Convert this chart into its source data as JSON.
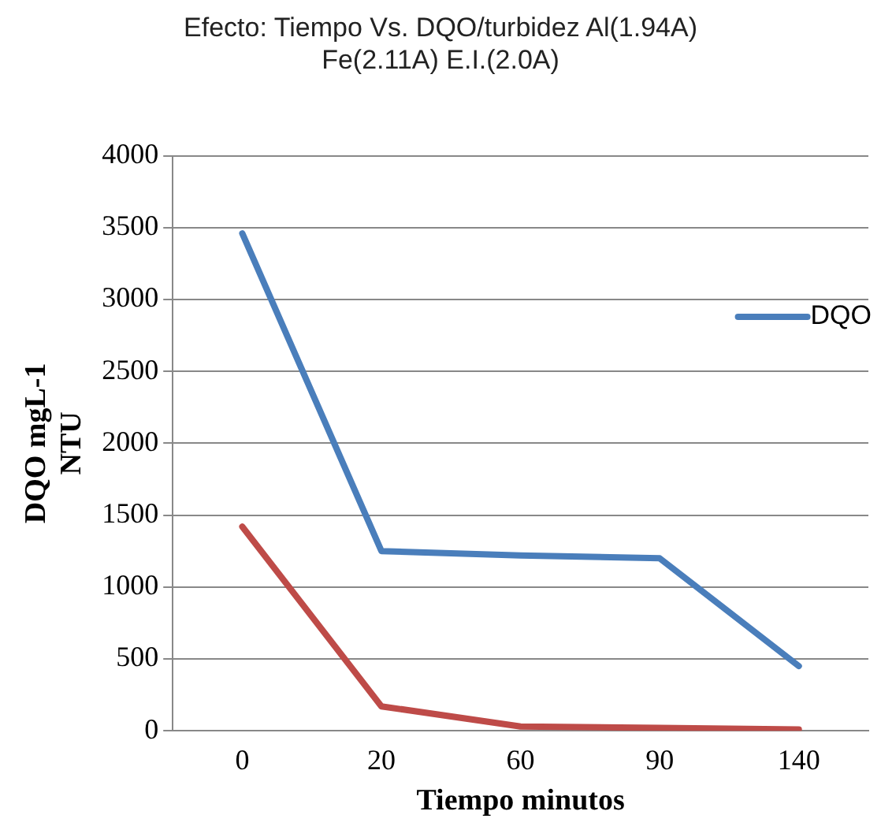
{
  "chart_data": {
    "type": "line",
    "title": "Efecto: Tiempo Vs. DQO/turbidez Al(1.94A)\nFe(2.11A) E.I.(2.0A)",
    "xlabel": "Tiempo minutos",
    "ylabel": "DQO mgL-1\nNTU",
    "categories": [
      "0",
      "20",
      "60",
      "90",
      "140"
    ],
    "series": [
      {
        "name": "DQO",
        "color": "#4a7ebb",
        "values": [
          3460,
          1250,
          1220,
          1200,
          450
        ]
      },
      {
        "color": "#be4b48",
        "values": [
          1420,
          170,
          30,
          20,
          10
        ]
      }
    ],
    "ylim": [
      0,
      4000
    ],
    "yticks": [
      0,
      500,
      1000,
      1500,
      2000,
      2500,
      3000,
      3500,
      4000
    ],
    "grid": "y",
    "legend": "right",
    "marker": "none"
  }
}
